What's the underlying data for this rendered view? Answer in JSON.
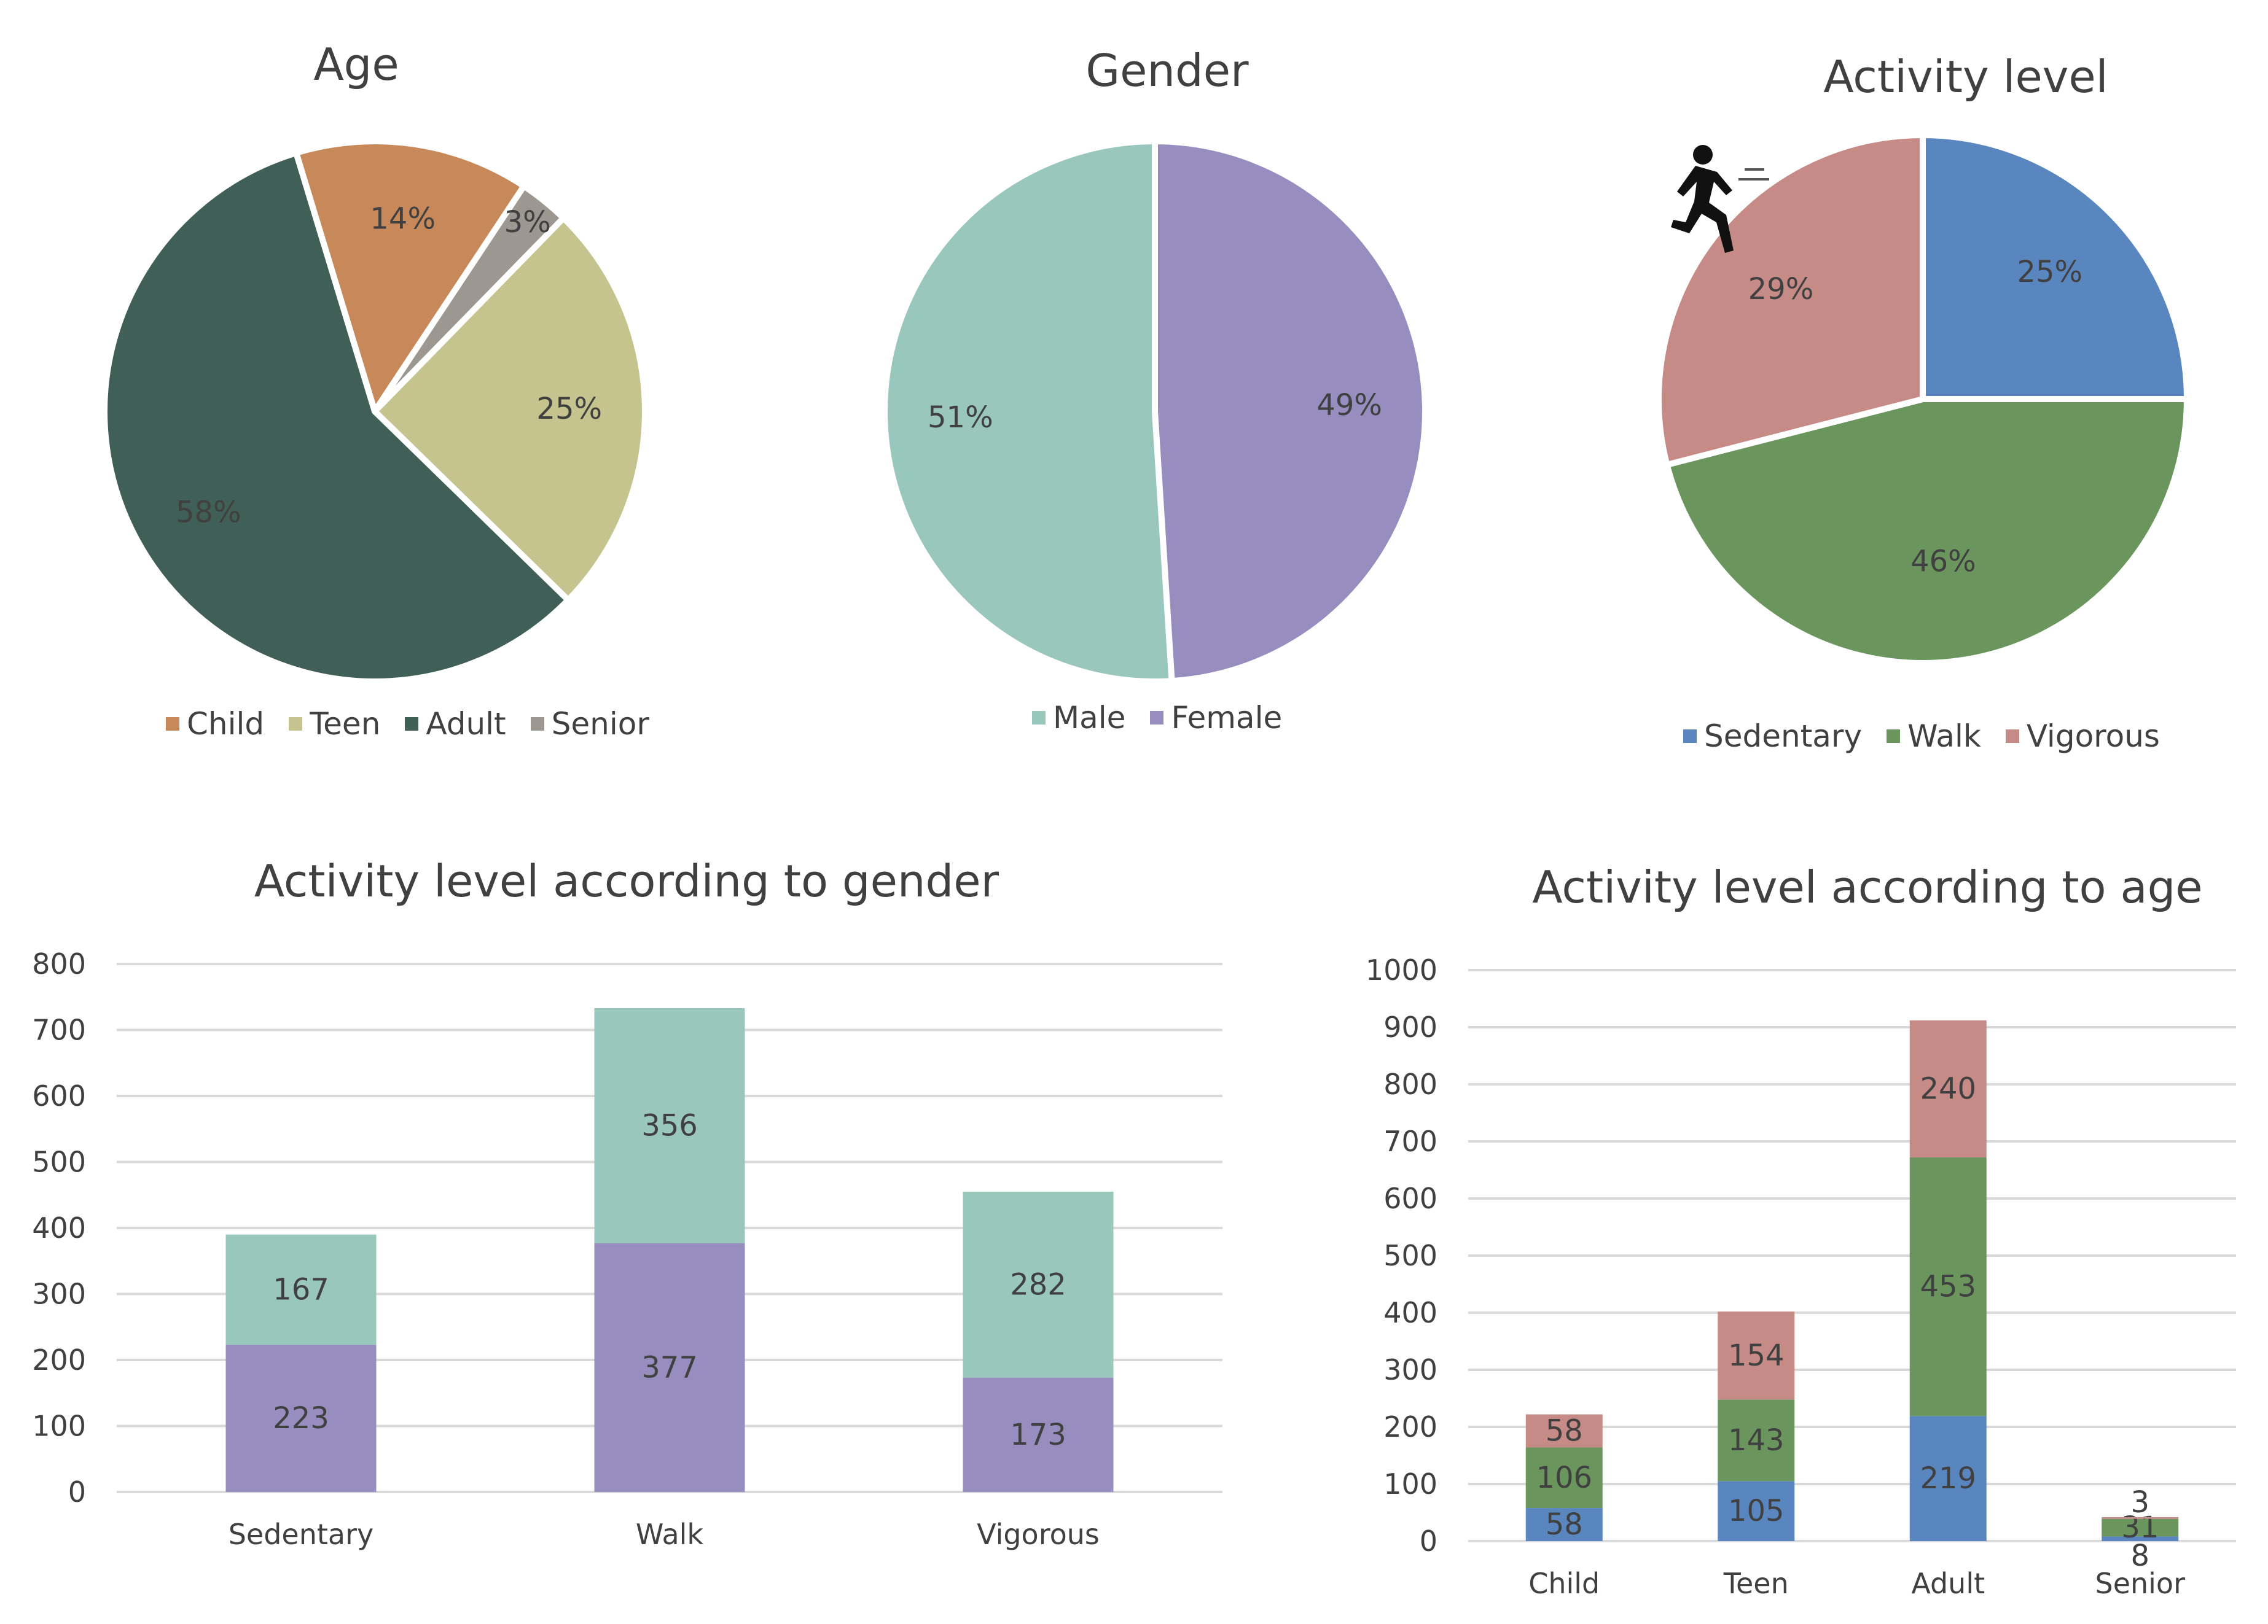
{
  "chart_data": [
    {
      "type": "pie",
      "title": "Age",
      "categories": [
        "Child",
        "Teen",
        "Adult",
        "Senior"
      ],
      "values": [
        14,
        25,
        58,
        3
      ],
      "labels": [
        "14%",
        "25%",
        "58%",
        "3%"
      ],
      "colors": [
        "#c8895a",
        "#c6c48e",
        "#405f57",
        "#9c9790"
      ],
      "legend_position": "bottom"
    },
    {
      "type": "pie",
      "title": "Gender",
      "categories": [
        "Male",
        "Female"
      ],
      "values": [
        51,
        49
      ],
      "labels": [
        "51%",
        "49%"
      ],
      "colors": [
        "#99c7bb",
        "#978dbf"
      ],
      "legend_position": "bottom"
    },
    {
      "type": "pie",
      "title": "Activity level",
      "categories": [
        "Sedentary",
        "Walk",
        "Vigorous"
      ],
      "values": [
        25,
        46,
        29
      ],
      "labels": [
        "25%",
        "46%",
        "29%"
      ],
      "colors": [
        "#5a86c0",
        "#6a965e",
        "#c68b86"
      ],
      "legend_position": "bottom"
    },
    {
      "type": "bar",
      "stacked": true,
      "title": "Activity level according to gender",
      "categories": [
        "Sedentary",
        "Walk",
        "Vigorous"
      ],
      "series": [
        {
          "values": [
            223,
            377,
            173
          ],
          "color": "#978dbf"
        },
        {
          "values": [
            167,
            356,
            282
          ],
          "color": "#99c7bb"
        }
      ],
      "ylim": [
        0,
        800
      ],
      "yticks": [
        0,
        100,
        200,
        300,
        400,
        500,
        600,
        700,
        800
      ],
      "grid": true
    },
    {
      "type": "bar",
      "stacked": true,
      "title": "Activity level according to age",
      "categories": [
        "Child",
        "Teen",
        "Adult",
        "Senior"
      ],
      "series": [
        {
          "values": [
            58,
            105,
            219,
            8
          ],
          "color": "#5a86c0"
        },
        {
          "values": [
            106,
            143,
            453,
            31
          ],
          "color": "#6a965e"
        },
        {
          "values": [
            58,
            154,
            240,
            3
          ],
          "color": "#c68b86"
        }
      ],
      "ylim": [
        0,
        1000
      ],
      "yticks": [
        0,
        100,
        200,
        300,
        400,
        500,
        600,
        700,
        800,
        900,
        1000
      ],
      "grid": true
    }
  ],
  "icons": {
    "runner": "running-person-icon"
  }
}
